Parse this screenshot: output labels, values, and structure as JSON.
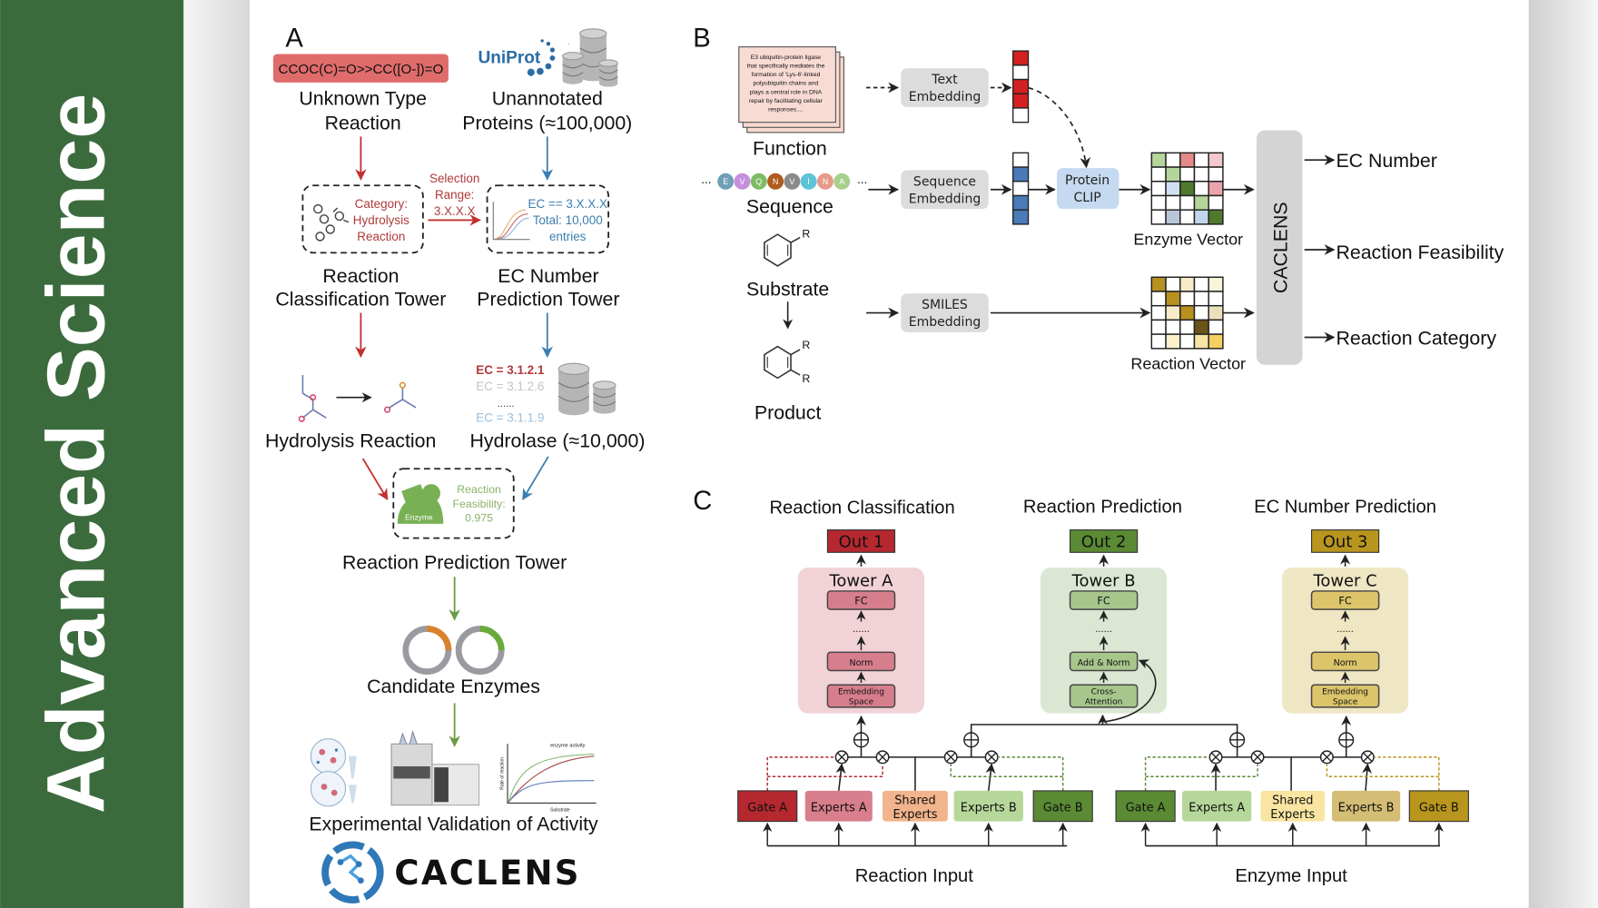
{
  "colors": {
    "banner": "#3b6a3d",
    "red": "#b5282f",
    "green": "#5a8a34",
    "gold": "#b8961e",
    "blue": "#3b7fb0"
  },
  "banner": {
    "title": "Advanced  Science"
  },
  "panel_a": {
    "label": "A",
    "smiles": "CCOC(C)=O>>CC([O-])=O",
    "unknown": [
      "Unknown Type",
      "Reaction"
    ],
    "uniprot": "UniProt",
    "unannotated": [
      "Unannotated",
      "Proteins (≈100,000)"
    ],
    "category": [
      "Category:",
      "Hydrolysis",
      "Reaction"
    ],
    "selection": [
      "Selection",
      "Range:",
      "3.X.X.X"
    ],
    "ec_box": [
      "EC == 3.X.X.X",
      "Total: 10,000",
      "entries"
    ],
    "rct": [
      "Reaction",
      "Classification Tower"
    ],
    "ecpt": [
      "EC Number",
      "Prediction Tower"
    ],
    "ec_list": [
      "EC = 3.1.2.1",
      "EC = 3.1.2.6",
      "......",
      "EC = 3.1.1.9"
    ],
    "hydrolysis": "Hydrolysis Reaction",
    "hydrolase": "Hydrolase (≈10,000)",
    "enzyme": "Enzyme",
    "feasibility": [
      "Reaction",
      "Feasibility:",
      "0.975"
    ],
    "rpt": "Reaction Prediction Tower",
    "candidate": "Candidate Enzymes",
    "activity_chart": {
      "title": "enzyme activity",
      "ylabel": "Rate of reaction",
      "xlabel": "Substrate"
    },
    "validation": "Experimental Validation of Activity",
    "logo": "CACLENS"
  },
  "panel_b": {
    "label": "B",
    "function_text": [
      "E3 ubiquitin-protein ligase",
      "that specifically mediates the",
      "formation of 'Lys-6'-linked",
      "polyubiquitin chains and",
      "plays a central role in DNA",
      "repair by facilitating cellular",
      "responses...."
    ],
    "function": "Function",
    "sequence_letters": [
      "E",
      "V",
      "Q",
      "N",
      "V",
      "I",
      "N",
      "A"
    ],
    "sequence_colors": [
      "#6fa0b8",
      "#c58fdc",
      "#7cbd63",
      "#b05a1e",
      "#8a8a8a",
      "#5fc3d8",
      "#e89a8a",
      "#a8d08a"
    ],
    "ellipsis": "...",
    "sequence": "Sequence",
    "text_emb": [
      "Text",
      "Embedding"
    ],
    "seq_emb": [
      "Sequence",
      "Embedding"
    ],
    "clip": [
      "Protein",
      "CLIP"
    ],
    "enzyme_vector": "Enzyme Vector",
    "substrate": "Substrate",
    "product": "Product",
    "r_label": "R",
    "smiles_emb": [
      "SMILES",
      "Embedding"
    ],
    "reaction_vector": "Reaction Vector",
    "caclens": "CACLENS",
    "outputs": [
      "EC Number",
      "Reaction Feasibility",
      "Reaction Category"
    ],
    "text_vector_colors": [
      "#d42020",
      "#ffffff",
      "#d42020",
      "#d42020",
      "#ffffff"
    ],
    "seq_vector_colors": [
      "#ffffff",
      "#4a7ab8",
      "#ffffff",
      "#4a7ab8",
      "#4a7ab8"
    ],
    "enzyme_grid": [
      [
        "#b4d69a",
        "#fff",
        "#e58a8a",
        "#fff",
        "#f3c9d0"
      ],
      [
        "#fff",
        "#b4d69a",
        "#fff",
        "#fff",
        "#fff"
      ],
      [
        "#fff",
        "#cfe0f2",
        "#4f7a2e",
        "#fff",
        "#e8a3ad"
      ],
      [
        "#fff",
        "#fff",
        "#fff",
        "#b4d69a",
        "#fff"
      ],
      [
        "#fff",
        "#b8c7d8",
        "#fff",
        "#c0d6ee",
        "#4f7a2e"
      ]
    ],
    "reaction_grid": [
      [
        "#b8901e",
        "#fff",
        "#f7ecc8",
        "#fff",
        "#fbf3d8"
      ],
      [
        "#fff",
        "#b8901e",
        "#fff",
        "#fff",
        "#fff"
      ],
      [
        "#fff",
        "#f7ecc8",
        "#b8901e",
        "#fff",
        "#ece0bb"
      ],
      [
        "#fff",
        "#fff",
        "#fff",
        "#6b5418",
        "#fff"
      ],
      [
        "#fff",
        "#fbf0cc",
        "#fff",
        "#f7e4a8",
        "#f3d060"
      ]
    ]
  },
  "panel_c": {
    "label": "C",
    "titles": [
      "Reaction Classification",
      "Reaction Prediction",
      "EC Number Prediction"
    ],
    "outs": [
      "Out 1",
      "Out 2",
      "Out 3"
    ],
    "towers": [
      {
        "name": "Tower A",
        "layers": [
          "FC",
          "Norm",
          "Embedding Space"
        ],
        "dots": "......"
      },
      {
        "name": "Tower B",
        "layers": [
          "FC",
          "Add & Norm",
          "Cross-Attention"
        ],
        "dots": "......"
      },
      {
        "name": "Tower C",
        "layers": [
          "FC",
          "Norm",
          "Embedding Space"
        ],
        "dots": "......"
      }
    ],
    "gates_left": [
      "Gate A",
      "Experts A",
      "Shared Experts",
      "Experts B",
      "Gate B"
    ],
    "gates_right": [
      "Gate A",
      "Experts A",
      "Shared Experts",
      "Experts B",
      "Gate B"
    ],
    "inputs": [
      "Reaction Input",
      "Enzyme Input"
    ]
  }
}
